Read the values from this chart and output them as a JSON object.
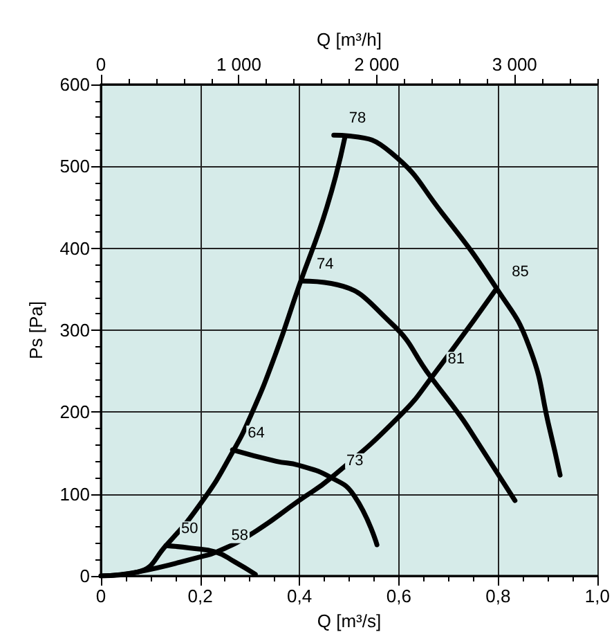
{
  "chart_data": {
    "type": "line",
    "xlabel": "Q [m³/s]",
    "x2label": "Q [m³/h]",
    "ylabel": "Ps [Pa]",
    "marker": "none",
    "line_style": "solid",
    "grid": true,
    "xlim": [
      0,
      1.0
    ],
    "xticks": [
      {
        "value": 0,
        "label": "0"
      },
      {
        "value": 0.05,
        "label": null
      },
      {
        "value": 0.1,
        "label": null
      },
      {
        "value": 0.15,
        "label": null
      },
      {
        "value": 0.2,
        "label": "0,2"
      },
      {
        "value": 0.25,
        "label": null
      },
      {
        "value": 0.3,
        "label": null
      },
      {
        "value": 0.35,
        "label": null
      },
      {
        "value": 0.4,
        "label": "0,4"
      },
      {
        "value": 0.45,
        "label": null
      },
      {
        "value": 0.5,
        "label": null
      },
      {
        "value": 0.55,
        "label": null
      },
      {
        "value": 0.6,
        "label": "0,6"
      },
      {
        "value": 0.65,
        "label": null
      },
      {
        "value": 0.7,
        "label": null
      },
      {
        "value": 0.75,
        "label": null
      },
      {
        "value": 0.8,
        "label": "0,8"
      },
      {
        "value": 0.85,
        "label": null
      },
      {
        "value": 0.9,
        "label": null
      },
      {
        "value": 0.95,
        "label": null
      },
      {
        "value": 1.0,
        "label": "1,0"
      }
    ],
    "x2lim": [
      0,
      3600
    ],
    "x2ticks": [
      {
        "value": 0,
        "label": "0"
      },
      {
        "value": 200,
        "label": null
      },
      {
        "value": 400,
        "label": null
      },
      {
        "value": 600,
        "label": null
      },
      {
        "value": 800,
        "label": null
      },
      {
        "value": 1000,
        "label": "1 000"
      },
      {
        "value": 1200,
        "label": null
      },
      {
        "value": 1400,
        "label": null
      },
      {
        "value": 1600,
        "label": null
      },
      {
        "value": 1800,
        "label": null
      },
      {
        "value": 2000,
        "label": "2 000"
      },
      {
        "value": 2200,
        "label": null
      },
      {
        "value": 2400,
        "label": null
      },
      {
        "value": 2600,
        "label": null
      },
      {
        "value": 2800,
        "label": null
      },
      {
        "value": 3000,
        "label": "3 000"
      },
      {
        "value": 3200,
        "label": null
      },
      {
        "value": 3400,
        "label": null
      },
      {
        "value": 3600,
        "label": null
      }
    ],
    "ylim": [
      0,
      600
    ],
    "yticks": [
      0,
      {
        "value": 20,
        "label": null
      },
      {
        "value": 40,
        "label": null
      },
      {
        "value": 60,
        "label": null
      },
      {
        "value": 80,
        "label": null
      },
      100,
      {
        "value": 120,
        "label": null
      },
      {
        "value": 140,
        "label": null
      },
      {
        "value": 160,
        "label": null
      },
      {
        "value": 180,
        "label": null
      },
      200,
      {
        "value": 220,
        "label": null
      },
      {
        "value": 240,
        "label": null
      },
      {
        "value": 260,
        "label": null
      },
      {
        "value": 280,
        "label": null
      },
      300,
      {
        "value": 320,
        "label": null
      },
      {
        "value": 340,
        "label": null
      },
      {
        "value": 360,
        "label": null
      },
      {
        "value": 380,
        "label": null
      },
      400,
      {
        "value": 420,
        "label": null
      },
      {
        "value": 440,
        "label": null
      },
      {
        "value": 460,
        "label": null
      },
      {
        "value": 480,
        "label": null
      },
      500,
      {
        "value": 520,
        "label": null
      },
      {
        "value": 540,
        "label": null
      },
      {
        "value": 560,
        "label": null
      },
      {
        "value": 580,
        "label": null
      },
      600
    ],
    "series": [
      {
        "color": "#000000",
        "x": [
          0,
          0.075,
          0.131,
          0.205,
          0.265,
          0.302,
          0.35,
          0.399,
          0.455,
          0.492
        ],
        "values": [
          0,
          5,
          37,
          92,
          151,
          196,
          268,
          354,
          450,
          537
        ]
      },
      {
        "color": "#000000",
        "x": [
          0,
          0.075,
          0.205,
          0.232,
          0.3,
          0.399,
          0.464,
          0.603,
          0.668,
          0.797
        ],
        "values": [
          0,
          5,
          24,
          29,
          50,
          92,
          120,
          196,
          244,
          351
        ]
      },
      {
        "color": "#000000",
        "x": [
          0.131,
          0.18,
          0.232,
          0.27,
          0.311
        ],
        "values": [
          37,
          34,
          29,
          17,
          2
        ]
      },
      {
        "color": "#000000",
        "x": [
          0.265,
          0.353,
          0.399,
          0.464,
          0.51,
          0.556
        ],
        "values": [
          154,
          140,
          135,
          120,
          98,
          38
        ]
      },
      {
        "color": "#000000",
        "x": [
          0.404,
          0.464,
          0.584,
          0.663,
          0.723,
          0.742,
          0.834
        ],
        "values": [
          360,
          357,
          309,
          244,
          196,
          179,
          92
        ]
      },
      {
        "color": "#000000",
        "x": [
          0.469,
          0.501,
          0.584,
          0.686,
          0.797,
          0.862,
          0.904,
          0.925
        ],
        "values": [
          538,
          537,
          517,
          444,
          351,
          281,
          179,
          123
        ]
      }
    ],
    "annotations": [
      {
        "text": "78",
        "x": 0.469,
        "y": 538
      },
      {
        "text": "74",
        "x": 0.404,
        "y": 360
      },
      {
        "text": "85",
        "x": 0.797,
        "y": 351
      },
      {
        "text": "81",
        "x": 0.668,
        "y": 244
      },
      {
        "text": "64",
        "x": 0.265,
        "y": 154
      },
      {
        "text": "73",
        "x": 0.464,
        "y": 120
      },
      {
        "text": "50",
        "x": 0.131,
        "y": 37
      },
      {
        "text": "58",
        "x": 0.232,
        "y": 29
      }
    ]
  }
}
